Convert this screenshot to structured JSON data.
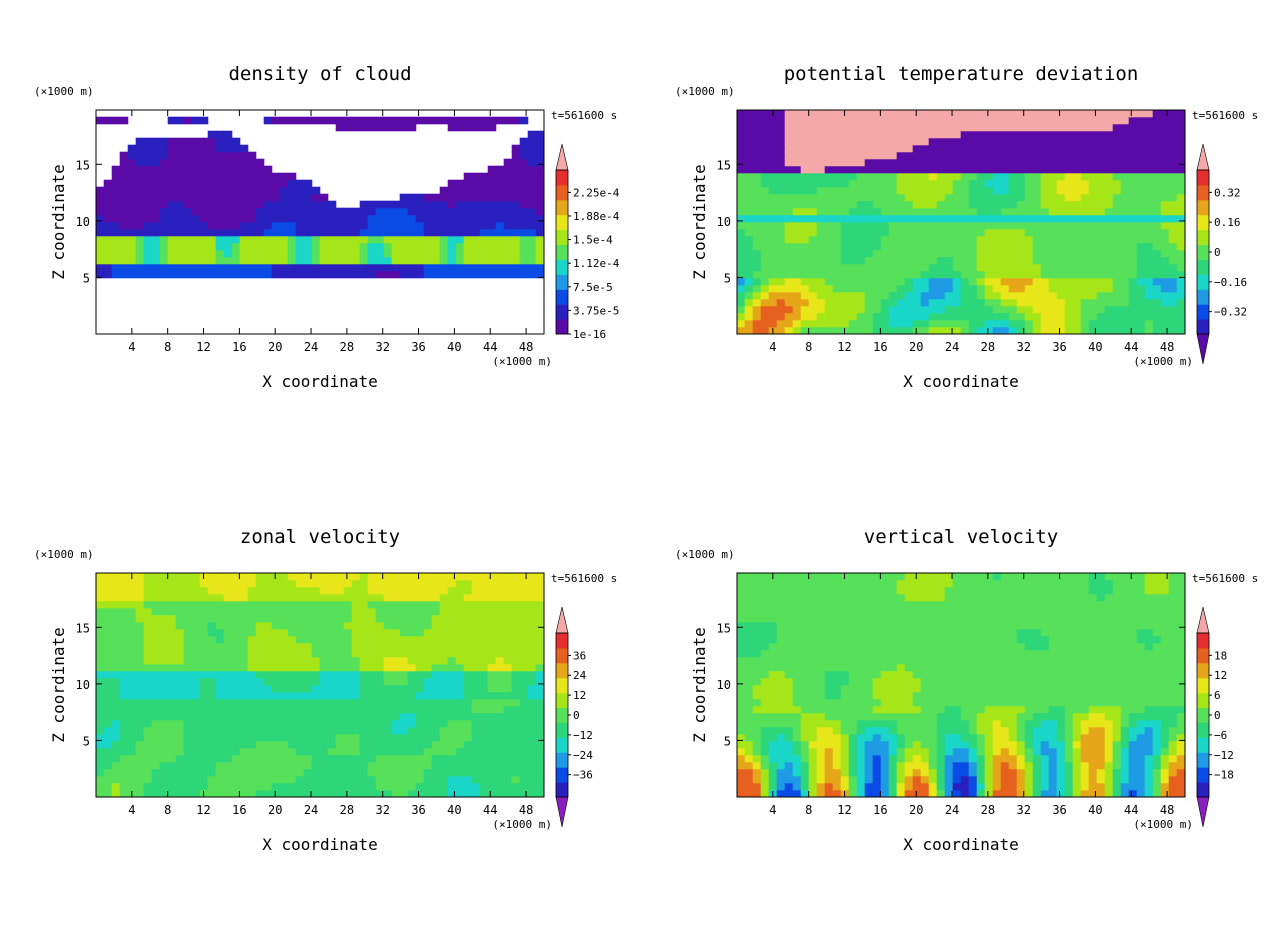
{
  "chart_data": [
    {
      "type": "heatmap",
      "title": "density of cloud",
      "xlabel": "X coordinate",
      "ylabel": "Z coordinate",
      "x_unit": "(×1000 m)",
      "y_unit": "(×1000 m)",
      "time_label": "t=561600 s",
      "xlim": [
        0,
        50
      ],
      "ylim": [
        0,
        19.8
      ],
      "x_ticks": [
        4,
        8,
        12,
        16,
        20,
        24,
        28,
        32,
        36,
        40,
        44,
        48
      ],
      "y_ticks": [
        5,
        10,
        15
      ],
      "colorbar_labels": [
        "2.25e-4",
        "1.88e-4",
        "1.5e-4",
        "1.12e-4",
        "7.5e-5",
        "3.75e-5",
        "1e-16"
      ],
      "colorbar_extend": "top",
      "colors": [
        "#5a0aa6",
        "#2a1fbf",
        "#0a4be6",
        "#1f9be6",
        "#19d6c8",
        "#57e05a",
        "#a6e619",
        "#e6e619",
        "#e6a619",
        "#e6601f",
        "#e62e2e",
        "#f4a8a8"
      ]
    },
    {
      "type": "heatmap",
      "title": "potential temperature deviation",
      "xlabel": "X coordinate",
      "ylabel": "Z coordinate",
      "x_unit": "(×1000 m)",
      "y_unit": "(×1000 m)",
      "time_label": "t=561600 s",
      "xlim": [
        0,
        50
      ],
      "ylim": [
        0,
        19.8
      ],
      "x_ticks": [
        4,
        8,
        12,
        16,
        20,
        24,
        28,
        32,
        36,
        40,
        44,
        48
      ],
      "y_ticks": [
        5,
        10,
        15
      ],
      "colorbar_labels": [
        "0.32",
        "0.16",
        "0",
        "−0.16",
        "−0.32"
      ],
      "colorbar_extend": "both",
      "colors": [
        "#5a0aa6",
        "#2a1fbf",
        "#0a4be6",
        "#1f9be6",
        "#19d6c8",
        "#2ed67a",
        "#57e05a",
        "#a6e619",
        "#e6e619",
        "#e6a619",
        "#e6601f",
        "#e62e2e",
        "#f4a8a8"
      ]
    },
    {
      "type": "heatmap",
      "title": "zonal velocity",
      "xlabel": "X coordinate",
      "ylabel": "Z coordinate",
      "x_unit": "(×1000 m)",
      "y_unit": "(×1000 m)",
      "time_label": "t=561600 s",
      "xlim": [
        0,
        50
      ],
      "ylim": [
        0,
        19.8
      ],
      "x_ticks": [
        4,
        8,
        12,
        16,
        20,
        24,
        28,
        32,
        36,
        40,
        44,
        48
      ],
      "y_ticks": [
        5,
        10,
        15
      ],
      "colorbar_labels": [
        "36",
        "24",
        "12",
        "0",
        "−12",
        "−24",
        "−36"
      ],
      "colorbar_extend": "both",
      "colors": [
        "#8a1fbf",
        "#2a1fbf",
        "#0a4be6",
        "#1f9be6",
        "#19d6c8",
        "#2ed67a",
        "#57e05a",
        "#a6e619",
        "#e6e619",
        "#e6a619",
        "#e6601f",
        "#e62e2e",
        "#f4a8a8"
      ]
    },
    {
      "type": "heatmap",
      "title": "vertical velocity",
      "xlabel": "X coordinate",
      "ylabel": "Z coordinate",
      "x_unit": "(×1000 m)",
      "y_unit": "(×1000 m)",
      "time_label": "t=561600 s",
      "xlim": [
        0,
        50
      ],
      "ylim": [
        0,
        19.8
      ],
      "x_ticks": [
        4,
        8,
        12,
        16,
        20,
        24,
        28,
        32,
        36,
        40,
        44,
        48
      ],
      "y_ticks": [
        5,
        10,
        15
      ],
      "colorbar_labels": [
        "18",
        "12",
        "6",
        "0",
        "−6",
        "−12",
        "−18"
      ],
      "colorbar_extend": "both",
      "colors": [
        "#8a1fbf",
        "#2a1fbf",
        "#0a4be6",
        "#1f9be6",
        "#19d6c8",
        "#2ed67a",
        "#57e05a",
        "#a6e619",
        "#e6e619",
        "#e6a619",
        "#e6601f",
        "#e62e2e",
        "#f4a8a8"
      ]
    }
  ]
}
